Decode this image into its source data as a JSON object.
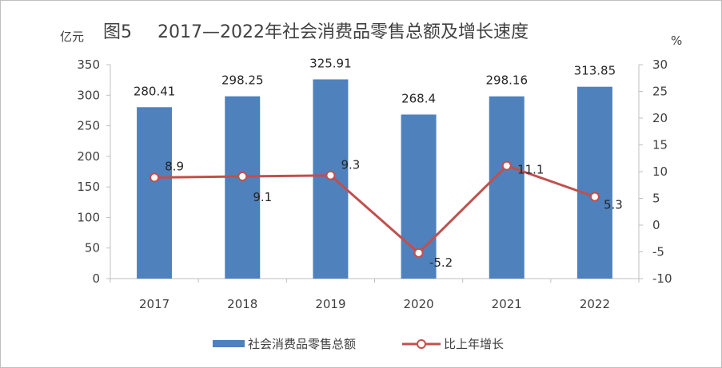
{
  "chart_data": {
    "type": "bar+line",
    "title_prefix": "图5",
    "title": "2017—2022年社会消费品零售总额及增长速度",
    "left_unit": "亿元",
    "right_unit": "%",
    "categories": [
      "2017",
      "2018",
      "2019",
      "2020",
      "2021",
      "2022"
    ],
    "series": [
      {
        "name": "社会消费品零售总额",
        "type": "bar",
        "axis": "left",
        "color": "#4f81bd",
        "values": [
          280.41,
          298.25,
          325.91,
          268.4,
          298.16,
          313.85
        ]
      },
      {
        "name": "比上年增长",
        "type": "line",
        "axis": "right",
        "color": "#c0504d",
        "values": [
          8.9,
          9.1,
          9.3,
          -5.2,
          11.1,
          5.3
        ]
      }
    ],
    "left_axis": {
      "min": 0,
      "max": 350,
      "ticks": [
        "0",
        "50",
        "100",
        "150",
        "200",
        "250",
        "300",
        "350"
      ]
    },
    "right_axis": {
      "min": -10,
      "max": 30,
      "ticks": [
        "-10",
        "-5",
        "0",
        "5",
        "10",
        "15",
        "20",
        "25",
        "30"
      ]
    },
    "bar_labels": [
      "280.41",
      "298.25",
      "325.91",
      "268.4",
      "298.16",
      "313.85"
    ],
    "line_labels": [
      "8.9",
      "9.1",
      "9.3",
      "-5.2",
      "11.1",
      "5.3"
    ],
    "legend_position": "bottom"
  }
}
